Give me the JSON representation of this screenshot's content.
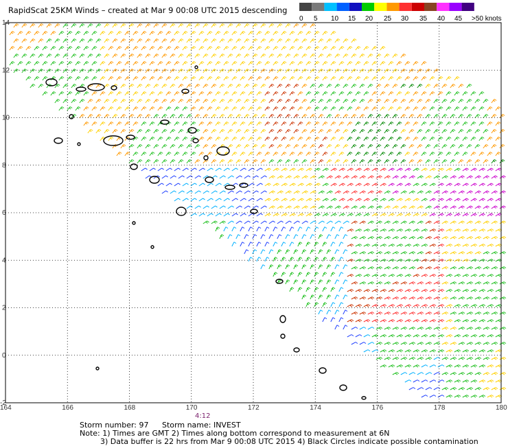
{
  "title": "RapidScat 25KM Winds – created at Mar  9 00:08 UTC 2015 descending",
  "legend": {
    "unit": ">50 knots",
    "labels": [
      "0",
      "5",
      "10",
      "15",
      "20",
      "25",
      "30",
      "35",
      "40",
      "45"
    ],
    "colors": [
      "#444444",
      "#7a7a7a",
      "#00c0ff",
      "#0060ff",
      "#1010c0",
      "#00cc00",
      "#ffff00",
      "#ff9900",
      "#ff3030",
      "#cc0000",
      "#884422",
      "#ff30ff",
      "#9900ff",
      "#400080"
    ]
  },
  "map": {
    "x_ticks": [
      "164",
      "166",
      "168",
      "170",
      "172",
      "174",
      "176",
      "178",
      "180"
    ],
    "y_ticks": [
      "14",
      "12",
      "10",
      "8",
      "6",
      "4",
      "2",
      "0",
      "-2"
    ],
    "lon_range": [
      164,
      180
    ],
    "lat_range": [
      -2,
      14
    ],
    "grid": true,
    "time_label": "4:12"
  },
  "footer": {
    "storm_number": "Storm number: 97",
    "storm_name": "Storm name: INVEST",
    "note1": "Note: 1) Times are GMT  2) Times along bottom correspond to measurement at 6N",
    "note2": "3) Data buffer is 22 hrs from Mar  9 00:08 UTC 2015   4) Black Circles indicate possible contamination"
  }
}
